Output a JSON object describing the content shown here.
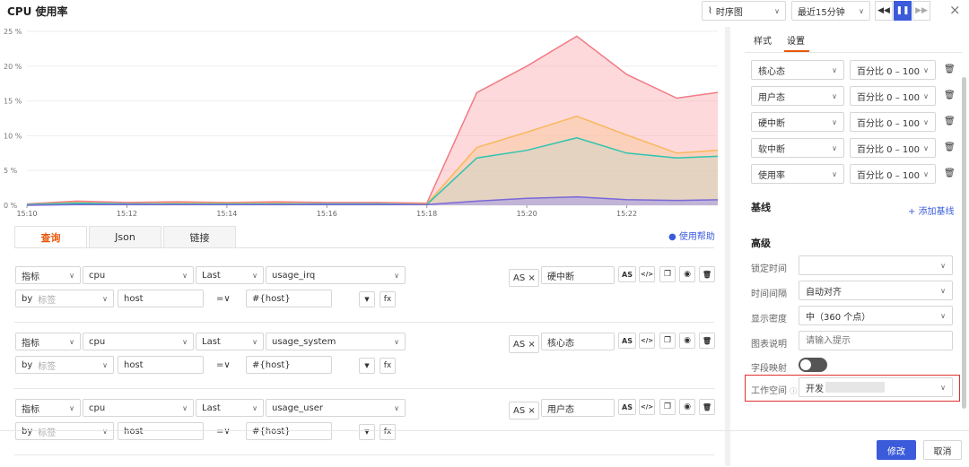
{
  "title": "CPU 使用率",
  "header": {
    "chart_type": "时序图",
    "time_range": "最近15分钟",
    "rewind": "◀◀",
    "pause": "❚❚",
    "forward": "▶▶",
    "close": "×"
  },
  "chart_data": {
    "type": "area",
    "x": [
      "15:10",
      "15:11",
      "15:12",
      "15:13",
      "15:14",
      "15:15",
      "15:16",
      "15:17",
      "15:18",
      "15:19",
      "15:20",
      "15:21",
      "15:22",
      "15:23",
      "15:24"
    ],
    "xticks": [
      "15:10",
      "15:12",
      "15:14",
      "15:16",
      "15:18",
      "15:20",
      "15:22"
    ],
    "yticks": [
      "25 %",
      "20 %",
      "15 %",
      "10 %",
      "5 %",
      "0 %"
    ],
    "ylim": [
      0,
      25
    ],
    "grid": true,
    "series": [
      {
        "color": "#f07b85",
        "fill": "rgba(250,170,175,0.45)",
        "values": [
          0.2,
          0.6,
          0.4,
          0.5,
          0.4,
          0.5,
          0.4,
          0.4,
          0.3,
          16.2,
          20.0,
          24.3,
          18.8,
          15.4,
          16.4
        ]
      },
      {
        "color": "#f8b85c",
        "fill": "rgba(250,200,150,0.45)",
        "values": [
          0.1,
          0.4,
          0.2,
          0.3,
          0.3,
          0.3,
          0.2,
          0.2,
          0.2,
          8.3,
          10.5,
          12.8,
          10.1,
          7.5,
          8.0
        ]
      },
      {
        "color": "#2ec4b0",
        "fill": "rgba(180,215,200,0.35)",
        "values": [
          0.1,
          0.3,
          0.2,
          0.2,
          0.2,
          0.2,
          0.2,
          0.2,
          0.1,
          6.8,
          7.9,
          9.7,
          7.5,
          6.8,
          7.1
        ]
      },
      {
        "color": "#7b68d8",
        "fill": "rgba(170,160,230,0.6)",
        "values": [
          0.0,
          0.1,
          0.1,
          0.1,
          0.1,
          0.1,
          0.1,
          0.1,
          0.1,
          0.6,
          1.0,
          1.2,
          0.8,
          0.7,
          0.8
        ]
      }
    ]
  },
  "tabs": [
    "查询",
    "Json",
    "链接"
  ],
  "help": "使用帮助",
  "queries": [
    {
      "metric_type": "指标",
      "measurement": "cpu",
      "agg": "Last",
      "field": "usage_irq",
      "by": "by",
      "by_ph": "标签",
      "tag": "host",
      "op": "=∨",
      "val": "#{host}",
      "as": "AS ×",
      "alias": "硬中断"
    },
    {
      "metric_type": "指标",
      "measurement": "cpu",
      "agg": "Last",
      "field": "usage_system",
      "by": "by",
      "by_ph": "标签",
      "tag": "host",
      "op": "=∨",
      "val": "#{host}",
      "as": "AS ×",
      "alias": "核心态"
    },
    {
      "metric_type": "指标",
      "measurement": "cpu",
      "agg": "Last",
      "field": "usage_user",
      "by": "by",
      "by_ph": "标签",
      "tag": "host",
      "op": "=∨",
      "val": "#{host}",
      "as": "AS ×",
      "alias": "用户态"
    }
  ],
  "qicons": {
    "as": "AS",
    "code": "</>",
    "copy": "❐",
    "eye": "◉",
    "del": "🗑",
    "filter": "▼",
    "fx": "fx"
  },
  "right": {
    "tabs": [
      "样式",
      "设置"
    ],
    "units": [
      {
        "name": "核心态",
        "unit": "百分比 0 – 100"
      },
      {
        "name": "用户态",
        "unit": "百分比 0 – 100"
      },
      {
        "name": "硬中断",
        "unit": "百分比 0 – 100"
      },
      {
        "name": "软中断",
        "unit": "百分比 0 – 100"
      },
      {
        "name": "使用率",
        "unit": "百分比 0 – 100"
      }
    ],
    "baseline": "基线",
    "add_baseline": "+ 添加基线",
    "advanced": "高级",
    "lock_time": "锁定时间",
    "interval": "时间间隔",
    "interval_val": "自动对齐",
    "density": "显示密度",
    "density_val": "中（360 个点）",
    "desc": "图表说明",
    "desc_ph": "请输入提示",
    "mapping": "字段映射",
    "workspace": "工作空间",
    "workspace_val": "开发"
  },
  "footer": {
    "confirm": "修改",
    "cancel": "取消"
  }
}
